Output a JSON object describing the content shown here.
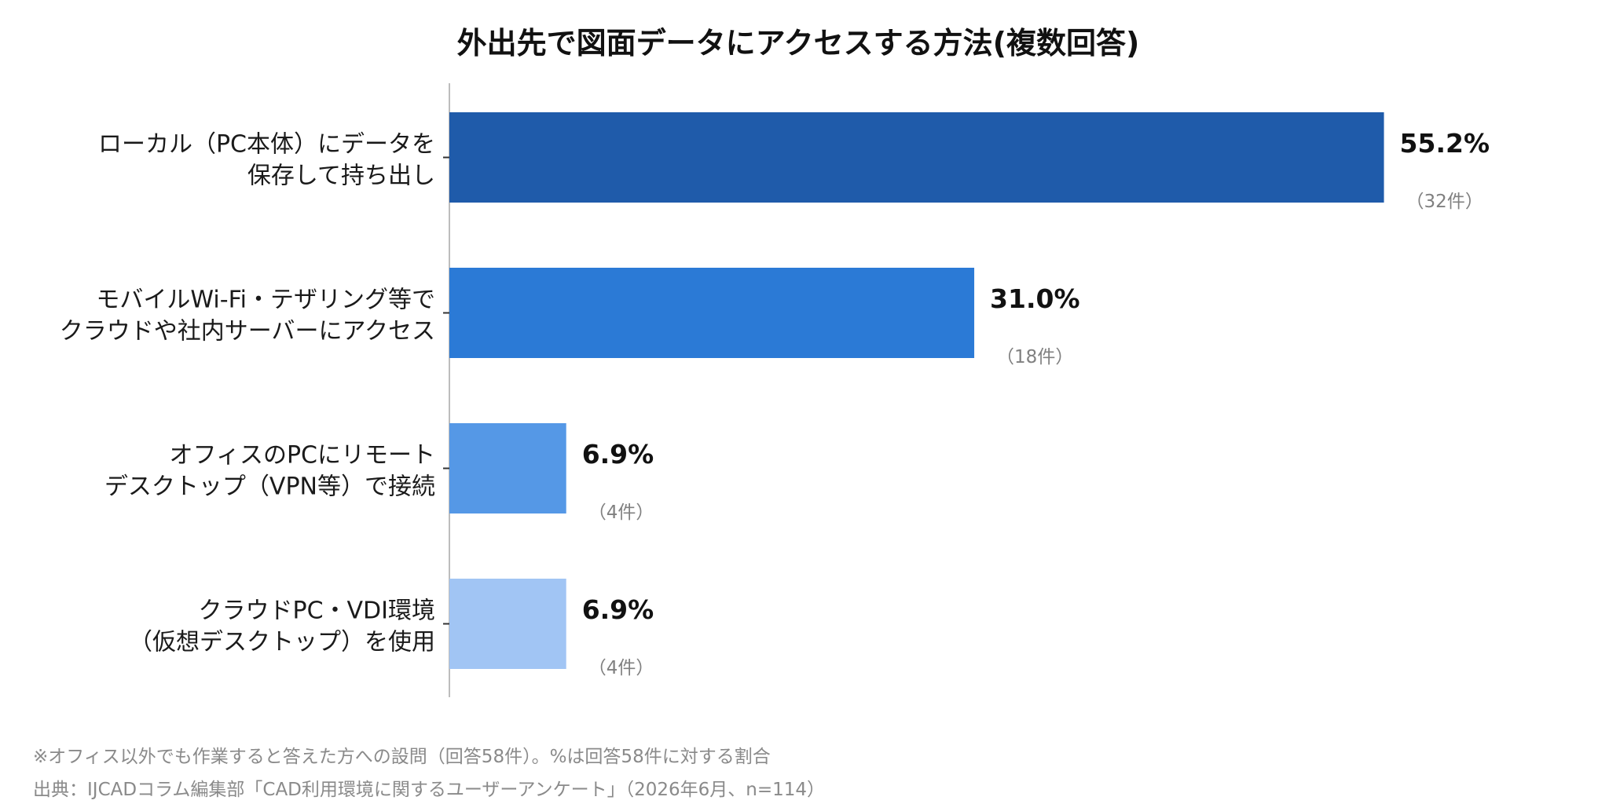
{
  "chart_data": {
    "type": "bar",
    "orientation": "horizontal",
    "title": "外出先で図面データにアクセスする方法(複数回答)",
    "categories": [
      [
        "ローカル（PC本体）にデータを",
        "保存して持ち出し"
      ],
      [
        "モバイルWi-Fi・テザリング等で",
        "クラウドや社内サーバーにアクセス"
      ],
      [
        "オフィスのPCにリモート",
        "デスクトップ（VPN等）で接続"
      ],
      [
        "クラウドPC・VDI環境",
        "（仮想デスクトップ）を使用"
      ]
    ],
    "values": [
      55.2,
      31.0,
      6.9,
      6.9
    ],
    "value_labels": [
      "55.2%",
      "31.0%",
      "6.9%",
      "6.9%"
    ],
    "count_labels": [
      "（32件）",
      "（18件）",
      "（4件）",
      "（4件）"
    ],
    "colors": [
      "#1f5baa",
      "#2b7ad6",
      "#5598e6",
      "#a1c5f4"
    ],
    "axis_color": "#bdbdbd",
    "xlim": [
      0,
      60
    ],
    "grid": false,
    "legend": "none"
  },
  "footnotes": {
    "note": "※オフィス以外でも作業すると答えた方への設問（回答58件）。%は回答58件に対する割合",
    "source": "出典：IJCADコラム編集部「CAD利用環境に関するユーザーアンケート」（2026年6月、n=114）"
  }
}
